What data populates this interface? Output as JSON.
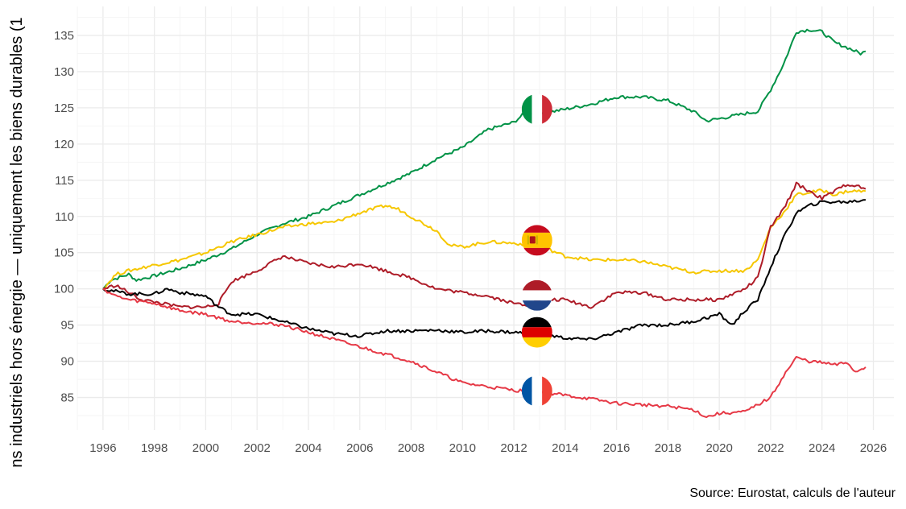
{
  "chart_data": {
    "type": "line",
    "title": "",
    "xlabel": "",
    "ylabel": "ns industriels hors énergie — uniquement les biens durables (1",
    "caption": "Source: Eurostat, calculs de l'auteur",
    "xlim": [
      1995,
      2026.8
    ],
    "ylim": [
      80.5,
      139
    ],
    "x_ticks": [
      1996,
      1998,
      2000,
      2002,
      2004,
      2006,
      2008,
      2010,
      2012,
      2014,
      2016,
      2018,
      2020,
      2022,
      2024,
      2026
    ],
    "x_tick_labels": [
      "1996",
      "1998",
      "2000",
      "2002",
      "2004",
      "2006",
      "2008",
      "2010",
      "2012",
      "2014",
      "2016",
      "2018",
      "2020",
      "2022",
      "2024",
      "2026"
    ],
    "y_ticks": [
      85,
      90,
      95,
      100,
      105,
      110,
      115,
      120,
      125,
      130,
      135
    ],
    "y_tick_labels": [
      "85",
      "90",
      "95",
      "100",
      "105",
      "110",
      "115",
      "120",
      "125",
      "130",
      "135"
    ],
    "grid": true,
    "legend": "flag markers at 2012.9",
    "series": [
      {
        "country": "Italy",
        "color": "#009246",
        "flag": "italy-flag-icon",
        "flag_value": 124.8,
        "points": [
          [
            1996,
            100
          ],
          [
            1996.3,
            101.2
          ],
          [
            1997,
            102
          ],
          [
            1997.3,
            101.2
          ],
          [
            1998,
            101.8
          ],
          [
            1999,
            102.8
          ],
          [
            2000,
            104
          ],
          [
            2001,
            105.5
          ],
          [
            2002,
            107.5
          ],
          [
            2003,
            109
          ],
          [
            2004,
            110
          ],
          [
            2005,
            111.5
          ],
          [
            2006,
            113
          ],
          [
            2007,
            114.5
          ],
          [
            2008,
            116
          ],
          [
            2009,
            118
          ],
          [
            2010,
            119.5
          ],
          [
            2011,
            122
          ],
          [
            2012,
            123
          ],
          [
            2012.5,
            124.5
          ],
          [
            2013,
            124
          ],
          [
            2013.5,
            124.5
          ],
          [
            2014,
            124.8
          ],
          [
            2015,
            125.5
          ],
          [
            2016,
            126.5
          ],
          [
            2017,
            126.5
          ],
          [
            2018,
            126
          ],
          [
            2019,
            124.5
          ],
          [
            2019.5,
            123.2
          ],
          [
            2020,
            123.5
          ],
          [
            2021,
            124.2
          ],
          [
            2021.5,
            124.5
          ],
          [
            2022,
            127.5
          ],
          [
            2022.5,
            131
          ],
          [
            2023,
            135.5
          ],
          [
            2023.5,
            135.8
          ],
          [
            2024,
            135.5
          ],
          [
            2024.5,
            134
          ],
          [
            2025,
            133.3
          ],
          [
            2025.5,
            132.5
          ],
          [
            2025.7,
            132.8
          ]
        ]
      },
      {
        "country": "Spain",
        "color": "#f6c700",
        "flag": "spain-flag-icon",
        "flag_value": 106.7,
        "points": [
          [
            1996,
            100
          ],
          [
            1996.5,
            102
          ],
          [
            1997,
            102.5
          ],
          [
            1998,
            103.3
          ],
          [
            1999,
            104
          ],
          [
            2000,
            105
          ],
          [
            2001,
            106.5
          ],
          [
            2002,
            107.5
          ],
          [
            2003,
            108.5
          ],
          [
            2004,
            109
          ],
          [
            2005,
            109.2
          ],
          [
            2006,
            110.5
          ],
          [
            2007,
            111.5
          ],
          [
            2007.5,
            111
          ],
          [
            2008,
            110
          ],
          [
            2009,
            108
          ],
          [
            2009.5,
            106
          ],
          [
            2010,
            105.8
          ],
          [
            2011,
            106.5
          ],
          [
            2012,
            106.3
          ],
          [
            2013,
            106
          ],
          [
            2014,
            104.5
          ],
          [
            2015,
            104
          ],
          [
            2016,
            104
          ],
          [
            2017,
            103.8
          ],
          [
            2018,
            103
          ],
          [
            2019,
            102.3
          ],
          [
            2020,
            102.5
          ],
          [
            2021,
            102.5
          ],
          [
            2021.5,
            104
          ],
          [
            2022,
            108.5
          ],
          [
            2022.5,
            110.5
          ],
          [
            2023,
            113
          ],
          [
            2024,
            113.6
          ],
          [
            2024.5,
            113
          ],
          [
            2025,
            113.5
          ],
          [
            2025.7,
            113.5
          ]
        ]
      },
      {
        "country": "Netherlands",
        "color": "#ae1c28",
        "flag": "netherlands-flag-icon",
        "flag_value": 99.1,
        "points": [
          [
            1996,
            100
          ],
          [
            1996.5,
            100.5
          ],
          [
            1997,
            99.5
          ],
          [
            1997.5,
            98.5
          ],
          [
            1998,
            98.2
          ],
          [
            1999,
            97.5
          ],
          [
            2000,
            97.5
          ],
          [
            2000.5,
            98
          ],
          [
            2001,
            101
          ],
          [
            2002,
            102.5
          ],
          [
            2003,
            104.5
          ],
          [
            2004,
            103.5
          ],
          [
            2005,
            103
          ],
          [
            2006,
            103.5
          ],
          [
            2007,
            102.5
          ],
          [
            2008,
            101.5
          ],
          [
            2009,
            100
          ],
          [
            2010,
            99.5
          ],
          [
            2011,
            99
          ],
          [
            2012,
            98
          ],
          [
            2012.5,
            97.8
          ],
          [
            2013,
            98.5
          ],
          [
            2014,
            98.5
          ],
          [
            2015,
            97.5
          ],
          [
            2016,
            99.5
          ],
          [
            2017,
            99.5
          ],
          [
            2018,
            98.5
          ],
          [
            2019,
            98.5
          ],
          [
            2020,
            98.5
          ],
          [
            2021,
            100
          ],
          [
            2021.5,
            101.5
          ],
          [
            2022,
            108.5
          ],
          [
            2022.5,
            111
          ],
          [
            2023,
            114.5
          ],
          [
            2023.5,
            113.5
          ],
          [
            2024,
            112.5
          ],
          [
            2024.5,
            113.5
          ],
          [
            2025,
            114.5
          ],
          [
            2025.7,
            113.8
          ]
        ]
      },
      {
        "country": "Germany",
        "color": "#000000",
        "flag": "germany-flag-icon",
        "flag_value": 94.0,
        "points": [
          [
            1996,
            100
          ],
          [
            1997,
            99.3
          ],
          [
            1998,
            99.3
          ],
          [
            1998.5,
            100
          ],
          [
            1999,
            99.5
          ],
          [
            2000,
            99
          ],
          [
            2000.5,
            97.5
          ],
          [
            2001,
            96.5
          ],
          [
            2002,
            96.5
          ],
          [
            2003,
            95.5
          ],
          [
            2004,
            94.5
          ],
          [
            2005,
            93.8
          ],
          [
            2006,
            93.5
          ],
          [
            2007,
            94.2
          ],
          [
            2008,
            94.2
          ],
          [
            2009,
            94.3
          ],
          [
            2010,
            94
          ],
          [
            2011,
            94.2
          ],
          [
            2012,
            94
          ],
          [
            2013,
            93.8
          ],
          [
            2014,
            93.2
          ],
          [
            2015,
            93
          ],
          [
            2016,
            94
          ],
          [
            2017,
            95
          ],
          [
            2018,
            95
          ],
          [
            2019,
            95.5
          ],
          [
            2020,
            96.5
          ],
          [
            2020.5,
            95
          ],
          [
            2021,
            97
          ],
          [
            2021.5,
            98.5
          ],
          [
            2022,
            103
          ],
          [
            2022.5,
            107
          ],
          [
            2023,
            110.5
          ],
          [
            2023.5,
            111.5
          ],
          [
            2024,
            112
          ],
          [
            2024.5,
            112
          ],
          [
            2025,
            112
          ],
          [
            2025.7,
            112.3
          ]
        ]
      },
      {
        "country": "France",
        "color": "#e63946",
        "flag": "france-flag-icon",
        "flag_value": 85.9,
        "points": [
          [
            1996,
            100
          ],
          [
            1996.5,
            99
          ],
          [
            1997,
            98.5
          ],
          [
            1998,
            98
          ],
          [
            1999,
            97
          ],
          [
            2000,
            96.5
          ],
          [
            2001,
            95.5
          ],
          [
            2002,
            95.3
          ],
          [
            2003,
            95
          ],
          [
            2004,
            94
          ],
          [
            2005,
            93
          ],
          [
            2006,
            92
          ],
          [
            2007,
            91
          ],
          [
            2008,
            90
          ],
          [
            2009,
            88.5
          ],
          [
            2010,
            87
          ],
          [
            2011,
            86.5
          ],
          [
            2012,
            86
          ],
          [
            2013,
            85.8
          ],
          [
            2014,
            85.3
          ],
          [
            2015,
            84.8
          ],
          [
            2016,
            84.2
          ],
          [
            2017,
            84
          ],
          [
            2018,
            83.8
          ],
          [
            2019,
            83.3
          ],
          [
            2019.5,
            82.3
          ],
          [
            2020,
            82.8
          ],
          [
            2021,
            83
          ],
          [
            2021.5,
            84
          ],
          [
            2022,
            85
          ],
          [
            2022.5,
            88
          ],
          [
            2023,
            90.5
          ],
          [
            2023.5,
            90
          ],
          [
            2024,
            89.8
          ],
          [
            2024.5,
            89.5
          ],
          [
            2025,
            89.8
          ],
          [
            2025.3,
            88.5
          ],
          [
            2025.7,
            89.2
          ]
        ]
      }
    ]
  }
}
